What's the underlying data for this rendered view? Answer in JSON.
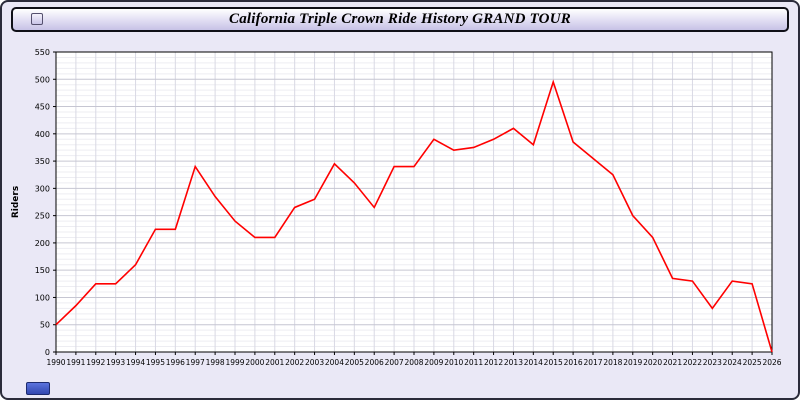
{
  "window": {
    "title": "California Triple Crown Ride History GRAND TOUR"
  },
  "chart_data": {
    "type": "line",
    "title": "California Triple Crown Ride History GRAND TOUR",
    "xlabel": "",
    "ylabel": "Riders",
    "x": [
      1990,
      1991,
      1992,
      1993,
      1994,
      1995,
      1996,
      1997,
      1998,
      1999,
      2000,
      2001,
      2002,
      2003,
      2004,
      2005,
      2006,
      2007,
      2008,
      2009,
      2010,
      2011,
      2012,
      2013,
      2014,
      2015,
      2016,
      2017,
      2018,
      2019,
      2020,
      2021,
      2022,
      2023,
      2024,
      2025,
      2026
    ],
    "values": [
      50,
      85,
      125,
      125,
      160,
      225,
      225,
      340,
      285,
      240,
      210,
      210,
      265,
      280,
      345,
      310,
      265,
      340,
      340,
      390,
      370,
      375,
      390,
      410,
      380,
      495,
      385,
      355,
      325,
      250,
      210,
      135,
      130,
      80,
      130,
      125,
      0
    ],
    "ylim": [
      0,
      550
    ],
    "ytick_step": 50,
    "grid": true,
    "legend": "none",
    "line_color": "#ff0000",
    "plot_background": "#ffffff",
    "page_background": "#eae8f6"
  }
}
